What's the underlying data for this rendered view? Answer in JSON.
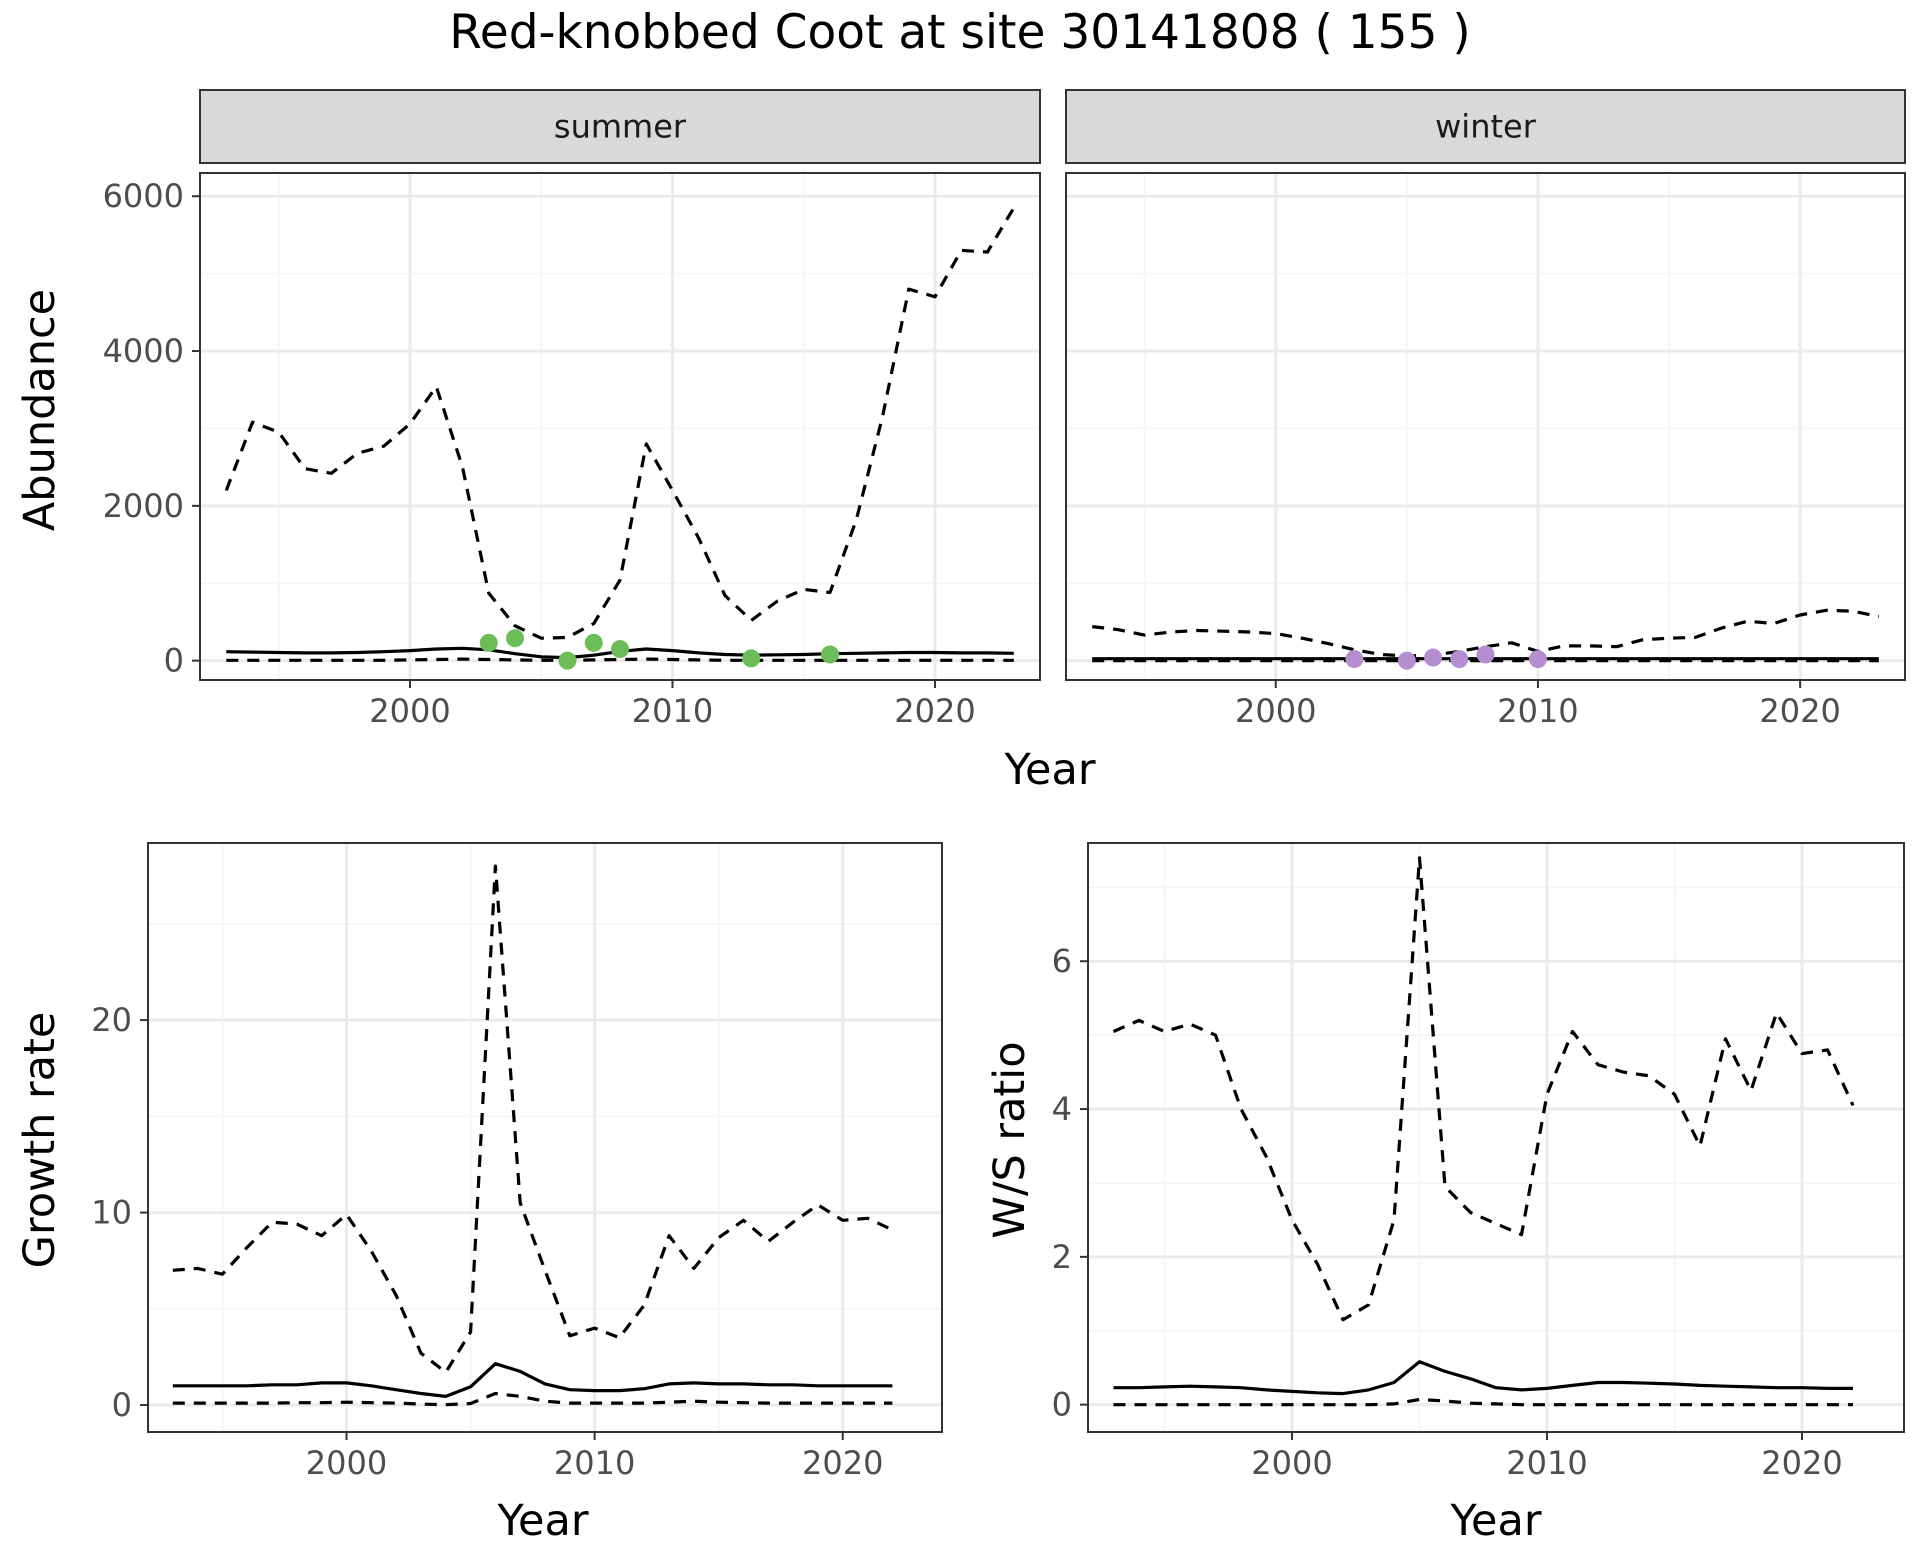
{
  "title": "Red-knobbed Coot at site 30141808 ( 155 )",
  "colors": {
    "summer_points": "#6cbd5a",
    "winter_points": "#b48ed0",
    "lines": "#000000",
    "panel_border": "#333333",
    "strip_fill": "#d9d9d9",
    "grid_major": "#ebebeb",
    "grid_minor": "#f5f5f5",
    "tick_text": "#4d4d4d"
  },
  "chart_data": [
    {
      "type": "line",
      "facet": "summer",
      "strip_label": "summer",
      "xlabel": "Year",
      "ylabel": "Abundance",
      "xlim": [
        1992,
        2024
      ],
      "ylim": [
        -250,
        6300
      ],
      "x_ticks": [
        2000,
        2010,
        2020
      ],
      "y_ticks": [
        0,
        2000,
        4000,
        6000
      ],
      "grid": true,
      "series": [
        {
          "role": "upper",
          "style": "dashed",
          "x": [
            1993,
            1994,
            1995,
            1996,
            1997,
            1998,
            1999,
            2000,
            2001,
            2002,
            2003,
            2004,
            2005,
            2006,
            2007,
            2008,
            2009,
            2010,
            2011,
            2012,
            2013,
            2014,
            2015,
            2016,
            2017,
            2018,
            2019,
            2020,
            2021,
            2022,
            2023
          ],
          "values": [
            2200,
            3080,
            2950,
            2480,
            2420,
            2680,
            2770,
            3060,
            3540,
            2500,
            870,
            450,
            290,
            300,
            480,
            1040,
            2800,
            2200,
            1580,
            840,
            520,
            770,
            920,
            880,
            1820,
            3150,
            4800,
            4700,
            5300,
            5280,
            5850
          ]
        },
        {
          "role": "estimate",
          "style": "solid",
          "x": [
            1993,
            1994,
            1995,
            1996,
            1997,
            1998,
            1999,
            2000,
            2001,
            2002,
            2003,
            2004,
            2005,
            2006,
            2007,
            2008,
            2009,
            2010,
            2011,
            2012,
            2013,
            2014,
            2015,
            2016,
            2017,
            2018,
            2019,
            2020,
            2021,
            2022,
            2023
          ],
          "values": [
            115,
            110,
            105,
            100,
            100,
            105,
            115,
            130,
            150,
            160,
            140,
            90,
            50,
            40,
            70,
            120,
            150,
            130,
            100,
            80,
            70,
            75,
            80,
            90,
            95,
            100,
            105,
            105,
            100,
            100,
            95
          ]
        },
        {
          "role": "lower",
          "style": "dashed",
          "x": [
            1993,
            1994,
            1995,
            1996,
            1997,
            1998,
            1999,
            2000,
            2001,
            2002,
            2003,
            2004,
            2005,
            2006,
            2007,
            2008,
            2009,
            2010,
            2011,
            2012,
            2013,
            2014,
            2015,
            2016,
            2017,
            2018,
            2019,
            2020,
            2021,
            2022,
            2023
          ],
          "values": [
            5,
            5,
            5,
            5,
            5,
            5,
            5,
            10,
            15,
            20,
            15,
            10,
            5,
            5,
            10,
            15,
            20,
            15,
            10,
            5,
            5,
            5,
            5,
            5,
            5,
            5,
            5,
            5,
            5,
            5,
            5
          ]
        }
      ],
      "points": {
        "x": [
          2003,
          2004,
          2006,
          2007,
          2008,
          2013,
          2016
        ],
        "values": [
          230,
          290,
          0,
          230,
          150,
          30,
          80
        ]
      }
    },
    {
      "type": "line",
      "facet": "winter",
      "strip_label": "winter",
      "xlabel": "Year",
      "ylabel": "",
      "xlim": [
        1992,
        2024
      ],
      "ylim": [
        -250,
        6300
      ],
      "x_ticks": [
        2000,
        2010,
        2020
      ],
      "y_ticks": [],
      "grid": true,
      "series": [
        {
          "role": "upper",
          "style": "dashed",
          "x": [
            1993,
            1994,
            1995,
            1996,
            1997,
            1998,
            1999,
            2000,
            2001,
            2002,
            2003,
            2004,
            2005,
            2006,
            2007,
            2008,
            2009,
            2010,
            2011,
            2012,
            2013,
            2014,
            2015,
            2016,
            2017,
            2018,
            2019,
            2020,
            2021,
            2022,
            2023
          ],
          "values": [
            440,
            400,
            330,
            370,
            390,
            380,
            370,
            350,
            290,
            220,
            140,
            80,
            60,
            70,
            120,
            180,
            230,
            120,
            190,
            190,
            180,
            270,
            290,
            300,
            420,
            510,
            480,
            590,
            650,
            640,
            570
          ]
        },
        {
          "role": "estimate",
          "style": "solid",
          "x": [
            1993,
            1994,
            1995,
            1996,
            1997,
            1998,
            1999,
            2000,
            2001,
            2002,
            2003,
            2004,
            2005,
            2006,
            2007,
            2008,
            2009,
            2010,
            2011,
            2012,
            2013,
            2014,
            2015,
            2016,
            2017,
            2018,
            2019,
            2020,
            2021,
            2022,
            2023
          ],
          "values": [
            25,
            25,
            25,
            25,
            25,
            25,
            25,
            25,
            25,
            25,
            25,
            25,
            25,
            25,
            25,
            25,
            25,
            25,
            25,
            25,
            25,
            25,
            25,
            25,
            25,
            25,
            25,
            25,
            25,
            25,
            25
          ]
        },
        {
          "role": "lower",
          "style": "dashed",
          "x": [
            1993,
            1994,
            1995,
            1996,
            1997,
            1998,
            1999,
            2000,
            2001,
            2002,
            2003,
            2004,
            2005,
            2006,
            2007,
            2008,
            2009,
            2010,
            2011,
            2012,
            2013,
            2014,
            2015,
            2016,
            2017,
            2018,
            2019,
            2020,
            2021,
            2022,
            2023
          ],
          "values": [
            0,
            0,
            0,
            0,
            0,
            0,
            0,
            0,
            0,
            0,
            0,
            0,
            0,
            0,
            0,
            0,
            0,
            0,
            0,
            0,
            0,
            0,
            0,
            0,
            0,
            0,
            0,
            0,
            0,
            0,
            0
          ]
        }
      ],
      "points": {
        "x": [
          2003,
          2005,
          2006,
          2007,
          2008,
          2010
        ],
        "values": [
          20,
          0,
          40,
          20,
          80,
          20
        ]
      }
    },
    {
      "type": "line",
      "facet": "growth",
      "strip_label": "",
      "xlabel": "Year",
      "ylabel": "Growth rate",
      "xlim": [
        1992,
        2024
      ],
      "ylim": [
        -1.4,
        29.2
      ],
      "x_ticks": [
        2000,
        2010,
        2020
      ],
      "y_ticks": [
        0,
        10,
        20
      ],
      "grid": true,
      "series": [
        {
          "role": "upper",
          "style": "dashed",
          "x": [
            1993,
            1994,
            1995,
            1996,
            1997,
            1998,
            1999,
            2000,
            2001,
            2002,
            2003,
            2004,
            2005,
            2006,
            2007,
            2008,
            2009,
            2010,
            2011,
            2012,
            2013,
            2014,
            2015,
            2016,
            2017,
            2018,
            2019,
            2020,
            2021,
            2022
          ],
          "values": [
            7.0,
            7.1,
            6.8,
            8.2,
            9.5,
            9.4,
            8.8,
            9.9,
            8.0,
            5.7,
            2.7,
            1.7,
            3.8,
            28.0,
            10.5,
            7.0,
            3.6,
            4.0,
            3.5,
            5.2,
            8.8,
            7.1,
            8.7,
            9.6,
            8.5,
            9.5,
            10.4,
            9.6,
            9.7,
            9.1
          ]
        },
        {
          "role": "estimate",
          "style": "solid",
          "x": [
            1993,
            1994,
            1995,
            1996,
            1997,
            1998,
            1999,
            2000,
            2001,
            2002,
            2003,
            2004,
            2005,
            2006,
            2007,
            2008,
            2009,
            2010,
            2011,
            2012,
            2013,
            2014,
            2015,
            2016,
            2017,
            2018,
            2019,
            2020,
            2021,
            2022
          ],
          "values": [
            1.0,
            1.0,
            1.0,
            1.0,
            1.05,
            1.05,
            1.15,
            1.15,
            1.0,
            0.8,
            0.6,
            0.45,
            0.95,
            2.15,
            1.75,
            1.1,
            0.8,
            0.75,
            0.75,
            0.85,
            1.1,
            1.15,
            1.1,
            1.1,
            1.05,
            1.05,
            1.0,
            1.0,
            1.0,
            1.0
          ]
        },
        {
          "role": "lower",
          "style": "dashed",
          "x": [
            1993,
            1994,
            1995,
            1996,
            1997,
            1998,
            1999,
            2000,
            2001,
            2002,
            2003,
            2004,
            2005,
            2006,
            2007,
            2008,
            2009,
            2010,
            2011,
            2012,
            2013,
            2014,
            2015,
            2016,
            2017,
            2018,
            2019,
            2020,
            2021,
            2022
          ],
          "values": [
            0.1,
            0.1,
            0.1,
            0.1,
            0.1,
            0.12,
            0.12,
            0.15,
            0.12,
            0.1,
            0.05,
            0.02,
            0.08,
            0.6,
            0.45,
            0.2,
            0.1,
            0.1,
            0.1,
            0.1,
            0.15,
            0.2,
            0.15,
            0.12,
            0.1,
            0.1,
            0.1,
            0.1,
            0.1,
            0.1
          ]
        }
      ]
    },
    {
      "type": "line",
      "facet": "ratio",
      "strip_label": "",
      "xlabel": "Year",
      "ylabel": "W/S ratio",
      "xlim": [
        1992,
        2024
      ],
      "ylim": [
        -0.37,
        7.6
      ],
      "x_ticks": [
        2000,
        2010,
        2020
      ],
      "y_ticks": [
        0,
        2,
        4,
        6
      ],
      "grid": true,
      "series": [
        {
          "role": "upper",
          "style": "dashed",
          "x": [
            1993,
            1994,
            1995,
            1996,
            1997,
            1998,
            1999,
            2000,
            2001,
            2002,
            2003,
            2004,
            2005,
            2006,
            2007,
            2008,
            2009,
            2010,
            2011,
            2012,
            2013,
            2014,
            2015,
            2016,
            2017,
            2018,
            2019,
            2020,
            2021,
            2022
          ],
          "values": [
            5.05,
            5.2,
            5.05,
            5.15,
            5.0,
            4.0,
            3.35,
            2.5,
            1.9,
            1.15,
            1.35,
            2.5,
            7.4,
            2.95,
            2.6,
            2.45,
            2.3,
            4.2,
            5.05,
            4.6,
            4.5,
            4.45,
            4.2,
            3.5,
            4.95,
            4.25,
            5.3,
            4.75,
            4.8,
            4.05
          ]
        },
        {
          "role": "estimate",
          "style": "solid",
          "x": [
            1993,
            1994,
            1995,
            1996,
            1997,
            1998,
            1999,
            2000,
            2001,
            2002,
            2003,
            2004,
            2005,
            2006,
            2007,
            2008,
            2009,
            2010,
            2011,
            2012,
            2013,
            2014,
            2015,
            2016,
            2017,
            2018,
            2019,
            2020,
            2021,
            2022
          ],
          "values": [
            0.23,
            0.23,
            0.24,
            0.25,
            0.24,
            0.23,
            0.2,
            0.18,
            0.16,
            0.15,
            0.2,
            0.3,
            0.58,
            0.45,
            0.35,
            0.23,
            0.2,
            0.22,
            0.26,
            0.3,
            0.3,
            0.29,
            0.28,
            0.26,
            0.25,
            0.24,
            0.23,
            0.23,
            0.22,
            0.22
          ]
        },
        {
          "role": "lower",
          "style": "dashed",
          "x": [
            1993,
            1994,
            1995,
            1996,
            1997,
            1998,
            1999,
            2000,
            2001,
            2002,
            2003,
            2004,
            2005,
            2006,
            2007,
            2008,
            2009,
            2010,
            2011,
            2012,
            2013,
            2014,
            2015,
            2016,
            2017,
            2018,
            2019,
            2020,
            2021,
            2022
          ],
          "values": [
            0.0,
            0.0,
            0.0,
            0.0,
            0.0,
            0.0,
            0.0,
            0.0,
            0.0,
            0.0,
            0.0,
            0.01,
            0.07,
            0.05,
            0.02,
            0.01,
            0.0,
            0.0,
            0.0,
            0.0,
            0.0,
            0.0,
            0.0,
            0.0,
            0.0,
            0.0,
            0.0,
            0.0,
            0.0,
            0.0
          ]
        }
      ]
    }
  ]
}
